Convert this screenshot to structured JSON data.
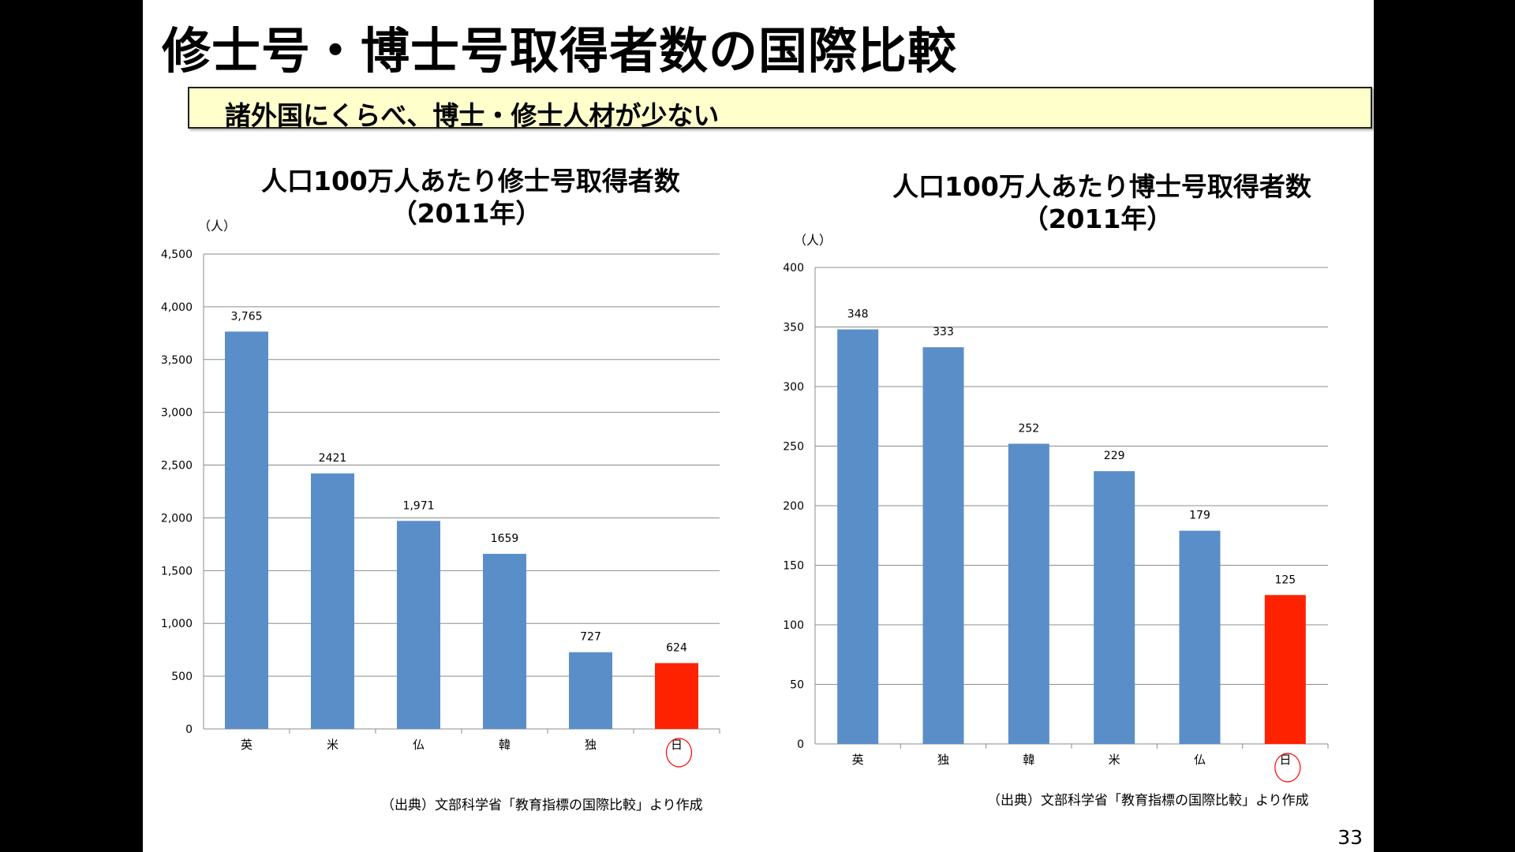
{
  "slide": {
    "title": "修士号・博士号取得者数の国際比較",
    "subtitle": "諸外国にくらべ、博士・修士人材が少ない",
    "page_number": "33"
  },
  "colors": {
    "bar": "#5a8ec8",
    "highlight_bar": "#ff2200",
    "highlight_circle": "#ff0000",
    "subtitle_background": "#ffffcc"
  },
  "chart_data": [
    {
      "type": "bar",
      "title_line1": "人口100万人あたり修士号取得者数",
      "title_line2": "（2011年）",
      "unit": "（人）",
      "categories": [
        "英",
        "米",
        "仏",
        "韓",
        "独",
        "日"
      ],
      "values": [
        3765,
        2421,
        1971,
        1659,
        727,
        624
      ],
      "value_labels": [
        "3,765",
        "2421",
        "1,971",
        "1659",
        "727",
        "624"
      ],
      "highlight_category": "日",
      "ylim": [
        0,
        4500
      ],
      "yticks": [
        0,
        500,
        1000,
        1500,
        2000,
        2500,
        3000,
        3500,
        4000,
        4500
      ],
      "ytick_labels": [
        "0",
        "500",
        "1,000",
        "1,500",
        "2,000",
        "2,500",
        "3,000",
        "3,500",
        "4,000",
        "4,500"
      ],
      "grid": true,
      "source": "（出典）文部科学省「教育指標の国際比較」より作成"
    },
    {
      "type": "bar",
      "title_line1": "人口100万人あたり博士号取得者数",
      "title_line2": "（2011年）",
      "unit": "（人）",
      "categories": [
        "英",
        "独",
        "韓",
        "米",
        "仏",
        "日"
      ],
      "values": [
        348,
        333,
        252,
        229,
        179,
        125
      ],
      "value_labels": [
        "348",
        "333",
        "252",
        "229",
        "179",
        "125"
      ],
      "highlight_category": "日",
      "ylim": [
        0,
        400
      ],
      "yticks": [
        0,
        50,
        100,
        150,
        200,
        250,
        300,
        350,
        400
      ],
      "ytick_labels": [
        "0",
        "50",
        "100",
        "150",
        "200",
        "250",
        "300",
        "350",
        "400"
      ],
      "grid": true,
      "source": "（出典）文部科学省「教育指標の国際比較」より作成"
    }
  ]
}
